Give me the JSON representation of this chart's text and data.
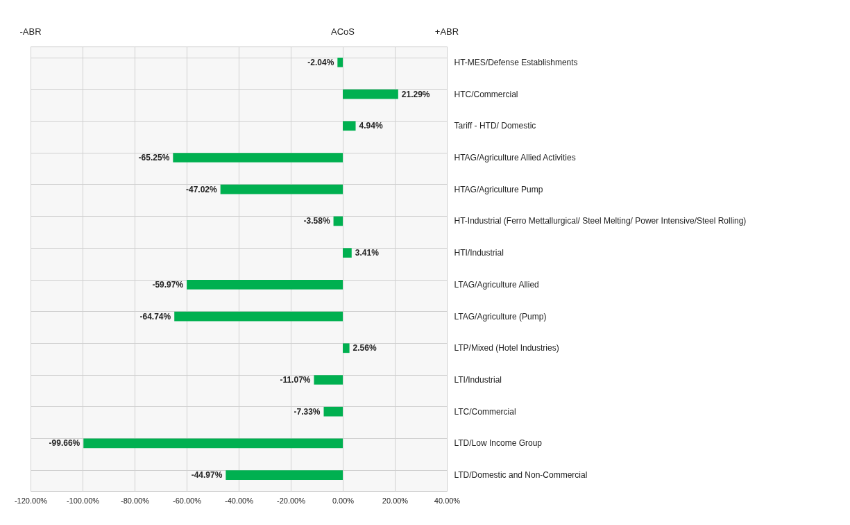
{
  "chart_data": {
    "type": "bar",
    "orientation": "horizontal",
    "categories": [
      "HT-MES/Defense Establishments",
      "HTC/Commercial",
      "Tariff - HTD/ Domestic",
      "HTAG/Agriculture Allied Activities",
      "HTAG/Agriculture Pump",
      "HT-Industrial (Ferro Mettallurgical/ Steel Melting/ Power Intensive/Steel Rolling)",
      "HTI/Industrial",
      "LTAG/Agriculture Allied",
      "LTAG/Agriculture  (Pump)",
      "LTP/Mixed (Hotel Industries)",
      "LTI/Industrial",
      "LTC/Commercial",
      "LTD/Low Income Group",
      "LTD/Domestic and Non-Commercial"
    ],
    "values": [
      -2.04,
      21.29,
      4.94,
      -65.25,
      -47.02,
      -3.58,
      3.41,
      -59.97,
      -64.74,
      2.56,
      -11.07,
      -7.33,
      -99.66,
      -44.97
    ],
    "value_labels": [
      "-2.04%",
      "21.29%",
      "4.94%",
      "-65.25%",
      "-47.02%",
      "-3.58%",
      "3.41%",
      "-59.97%",
      "-64.74%",
      "2.56%",
      "-11.07%",
      "-7.33%",
      "-99.66%",
      "-44.97%"
    ],
    "color": "#00b050",
    "xlim": [
      -120,
      40
    ],
    "xticks": [
      {
        "value": -120,
        "label": "-120.00%"
      },
      {
        "value": -100,
        "label": "-100.00%"
      },
      {
        "value": -80,
        "label": "-80.00%"
      },
      {
        "value": -60,
        "label": "-60.00%"
      },
      {
        "value": -40,
        "label": "-40.00%"
      },
      {
        "value": -20,
        "label": "-20.00%"
      },
      {
        "value": 0,
        "label": "0.00%"
      },
      {
        "value": 20,
        "label": "20.00%"
      },
      {
        "value": 40,
        "label": "40.00%"
      }
    ],
    "grid": true,
    "annotations": [
      "-ABR",
      "ACoS",
      "+ABR"
    ]
  }
}
